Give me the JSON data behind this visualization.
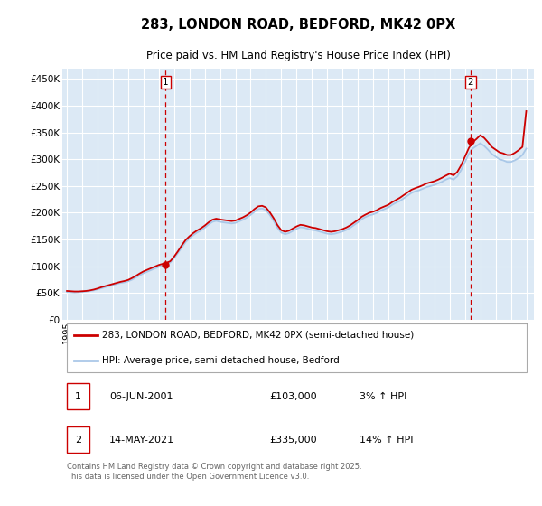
{
  "title": "283, LONDON ROAD, BEDFORD, MK42 0PX",
  "subtitle": "Price paid vs. HM Land Registry's House Price Index (HPI)",
  "ytick_vals": [
    0,
    50000,
    100000,
    150000,
    200000,
    250000,
    300000,
    350000,
    400000,
    450000
  ],
  "ylim": [
    0,
    470000
  ],
  "xlim_start": 1994.7,
  "xlim_end": 2025.5,
  "background_color": "#dce9f5",
  "grid_color": "#ffffff",
  "line1_color": "#cc0000",
  "line2_color": "#aac8e8",
  "marker_color": "#cc0000",
  "dashed_color": "#cc0000",
  "legend_label1": "283, LONDON ROAD, BEDFORD, MK42 0PX (semi-detached house)",
  "legend_label2": "HPI: Average price, semi-detached house, Bedford",
  "sale1_label": "1",
  "sale1_date": "06-JUN-2001",
  "sale1_price": "£103,000",
  "sale1_hpi": "3% ↑ HPI",
  "sale1_x": 2001.44,
  "sale1_y": 103000,
  "sale2_label": "2",
  "sale2_date": "14-MAY-2021",
  "sale2_price": "£335,000",
  "sale2_hpi": "14% ↑ HPI",
  "sale2_x": 2021.37,
  "sale2_y": 335000,
  "footer": "Contains HM Land Registry data © Crown copyright and database right 2025.\nThis data is licensed under the Open Government Licence v3.0.",
  "hpi_years": [
    1995.0,
    1995.25,
    1995.5,
    1995.75,
    1996.0,
    1996.25,
    1996.5,
    1996.75,
    1997.0,
    1997.25,
    1997.5,
    1997.75,
    1998.0,
    1998.25,
    1998.5,
    1998.75,
    1999.0,
    1999.25,
    1999.5,
    1999.75,
    2000.0,
    2000.25,
    2000.5,
    2000.75,
    2001.0,
    2001.25,
    2001.5,
    2001.75,
    2002.0,
    2002.25,
    2002.5,
    2002.75,
    2003.0,
    2003.25,
    2003.5,
    2003.75,
    2004.0,
    2004.25,
    2004.5,
    2004.75,
    2005.0,
    2005.25,
    2005.5,
    2005.75,
    2006.0,
    2006.25,
    2006.5,
    2006.75,
    2007.0,
    2007.25,
    2007.5,
    2007.75,
    2008.0,
    2008.25,
    2008.5,
    2008.75,
    2009.0,
    2009.25,
    2009.5,
    2009.75,
    2010.0,
    2010.25,
    2010.5,
    2010.75,
    2011.0,
    2011.25,
    2011.5,
    2011.75,
    2012.0,
    2012.25,
    2012.5,
    2012.75,
    2013.0,
    2013.25,
    2013.5,
    2013.75,
    2014.0,
    2014.25,
    2014.5,
    2014.75,
    2015.0,
    2015.25,
    2015.5,
    2015.75,
    2016.0,
    2016.25,
    2016.5,
    2016.75,
    2017.0,
    2017.25,
    2017.5,
    2017.75,
    2018.0,
    2018.25,
    2018.5,
    2018.75,
    2019.0,
    2019.25,
    2019.5,
    2019.75,
    2020.0,
    2020.25,
    2020.5,
    2020.75,
    2021.0,
    2021.25,
    2021.5,
    2021.75,
    2022.0,
    2022.25,
    2022.5,
    2022.75,
    2023.0,
    2023.25,
    2023.5,
    2023.75,
    2024.0,
    2024.25,
    2024.5,
    2024.75,
    2025.0
  ],
  "hpi_vals": [
    52000,
    51500,
    51000,
    51500,
    52000,
    53000,
    54000,
    55000,
    57000,
    59000,
    61000,
    63000,
    65000,
    67000,
    69000,
    70000,
    72000,
    75000,
    79000,
    83000,
    87000,
    90000,
    93000,
    96000,
    99000,
    101000,
    104000,
    107000,
    115000,
    125000,
    135000,
    145000,
    152000,
    158000,
    163000,
    167000,
    172000,
    178000,
    183000,
    185000,
    183000,
    182000,
    181000,
    180000,
    181000,
    184000,
    187000,
    191000,
    196000,
    202000,
    207000,
    208000,
    205000,
    196000,
    185000,
    172000,
    163000,
    160000,
    162000,
    166000,
    170000,
    173000,
    172000,
    170000,
    168000,
    167000,
    165000,
    163000,
    161000,
    160000,
    161000,
    163000,
    165000,
    168000,
    172000,
    177000,
    182000,
    188000,
    192000,
    195000,
    197000,
    200000,
    204000,
    207000,
    210000,
    215000,
    219000,
    222000,
    227000,
    232000,
    237000,
    240000,
    242000,
    245000,
    248000,
    250000,
    252000,
    255000,
    258000,
    262000,
    265000,
    262000,
    268000,
    280000,
    295000,
    310000,
    320000,
    325000,
    330000,
    325000,
    318000,
    310000,
    305000,
    300000,
    298000,
    295000,
    295000,
    298000,
    302000,
    308000,
    320000
  ],
  "price_years": [
    1995.0,
    1995.25,
    1995.5,
    1995.75,
    1996.0,
    1996.25,
    1996.5,
    1996.75,
    1997.0,
    1997.25,
    1997.5,
    1997.75,
    1998.0,
    1998.25,
    1998.5,
    1998.75,
    1999.0,
    1999.25,
    1999.5,
    1999.75,
    2000.0,
    2000.25,
    2000.5,
    2000.75,
    2001.0,
    2001.25,
    2001.5,
    2001.75,
    2002.0,
    2002.25,
    2002.5,
    2002.75,
    2003.0,
    2003.25,
    2003.5,
    2003.75,
    2004.0,
    2004.25,
    2004.5,
    2004.75,
    2005.0,
    2005.25,
    2005.5,
    2005.75,
    2006.0,
    2006.25,
    2006.5,
    2006.75,
    2007.0,
    2007.25,
    2007.5,
    2007.75,
    2008.0,
    2008.25,
    2008.5,
    2008.75,
    2009.0,
    2009.25,
    2009.5,
    2009.75,
    2010.0,
    2010.25,
    2010.5,
    2010.75,
    2011.0,
    2011.25,
    2011.5,
    2011.75,
    2012.0,
    2012.25,
    2012.5,
    2012.75,
    2013.0,
    2013.25,
    2013.5,
    2013.75,
    2014.0,
    2014.25,
    2014.5,
    2014.75,
    2015.0,
    2015.25,
    2015.5,
    2015.75,
    2016.0,
    2016.25,
    2016.5,
    2016.75,
    2017.0,
    2017.25,
    2017.5,
    2017.75,
    2018.0,
    2018.25,
    2018.5,
    2018.75,
    2019.0,
    2019.25,
    2019.5,
    2019.75,
    2020.0,
    2020.25,
    2020.5,
    2020.75,
    2021.0,
    2021.25,
    2021.5,
    2021.75,
    2022.0,
    2022.25,
    2022.5,
    2022.75,
    2023.0,
    2023.25,
    2023.5,
    2023.75,
    2024.0,
    2024.25,
    2024.5,
    2024.75,
    2025.0
  ],
  "price_vals": [
    54000,
    53500,
    53000,
    53000,
    53500,
    54000,
    55000,
    56500,
    58500,
    61000,
    63000,
    65000,
    67000,
    69000,
    71000,
    72500,
    74500,
    78000,
    82000,
    86500,
    90500,
    93500,
    96500,
    99500,
    102500,
    104500,
    106500,
    109500,
    118000,
    128000,
    139000,
    149000,
    156000,
    162000,
    167000,
    171000,
    176000,
    182000,
    187000,
    189000,
    187500,
    186500,
    185500,
    184500,
    185500,
    188500,
    191500,
    195500,
    200500,
    207000,
    212000,
    213000,
    210000,
    201000,
    190000,
    177000,
    167500,
    164500,
    166500,
    170500,
    174500,
    177500,
    176500,
    174500,
    172500,
    171500,
    169500,
    167500,
    165500,
    164500,
    165500,
    167500,
    169500,
    172500,
    176500,
    181500,
    186500,
    192500,
    196500,
    200000,
    202000,
    205000,
    209000,
    212000,
    215000,
    220000,
    224000,
    228000,
    233000,
    238000,
    243000,
    246000,
    248500,
    251500,
    255000,
    257000,
    259000,
    262000,
    265500,
    269500,
    273000,
    270000,
    276500,
    289000,
    305000,
    321000,
    332000,
    338000,
    345000,
    340000,
    332000,
    323000,
    318000,
    313000,
    311000,
    308000,
    308000,
    312000,
    317000,
    323000,
    390000
  ]
}
